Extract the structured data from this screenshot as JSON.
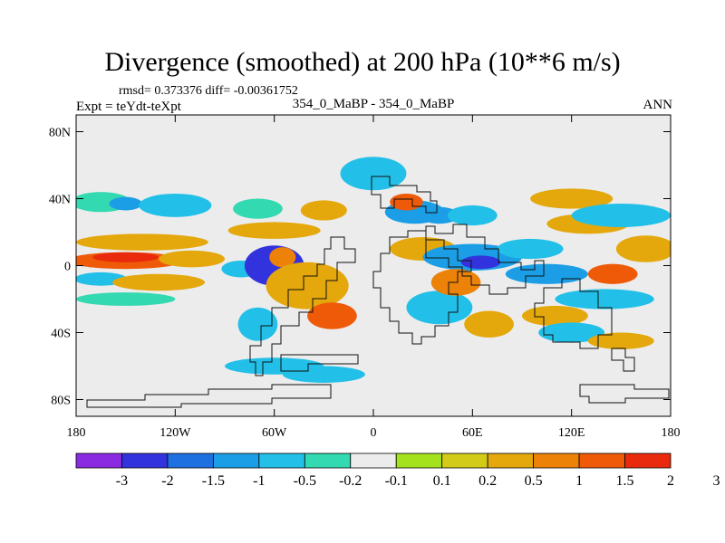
{
  "header": {
    "title": "Divergence (smoothed) at 200 hPa (10**6 m/s)",
    "stats": "rmsd= 0.373376 diff= -0.00361752",
    "experiment": "Expt = teYdt-teXpt",
    "case": "354_0_MaBP - 354_0_MaBP",
    "period": "ANN"
  },
  "chart_data": {
    "type": "heatmap",
    "title": "Divergence (smoothed) at 200 hPa (10**6 m/s)",
    "xlabel": "",
    "ylabel": "",
    "xlim": [
      -180,
      180
    ],
    "ylim": [
      -90,
      90
    ],
    "x_ticks": [
      {
        "value": -180,
        "label": "180"
      },
      {
        "value": -120,
        "label": "120W"
      },
      {
        "value": -60,
        "label": "60W"
      },
      {
        "value": 0,
        "label": "0"
      },
      {
        "value": 60,
        "label": "60E"
      },
      {
        "value": 120,
        "label": "120E"
      },
      {
        "value": 180,
        "label": "180"
      }
    ],
    "y_ticks": [
      {
        "value": 80,
        "label": "80N"
      },
      {
        "value": 40,
        "label": "40N"
      },
      {
        "value": 0,
        "label": "0"
      },
      {
        "value": -40,
        "label": "40S"
      },
      {
        "value": -80,
        "label": "80S"
      }
    ],
    "colorbar": {
      "colors": [
        "#8a2be2",
        "#3333dd",
        "#1e6fe0",
        "#1b9ee6",
        "#22c0e8",
        "#33d9b0",
        "#ececec",
        "#a5e21e",
        "#d2cc18",
        "#e4a80d",
        "#ec8208",
        "#ef5a08",
        "#ea2a0c"
      ],
      "labels": [
        "-3",
        "-2",
        "-1.5",
        "-1",
        "-0.5",
        "-0.2",
        "-0.1",
        "0.1",
        "0.2",
        "0.5",
        "1",
        "1.5",
        "2",
        "3"
      ]
    },
    "blobs": [
      {
        "lon": -165,
        "lat": 38,
        "rlon": 18,
        "rlat": 6,
        "level": 5
      },
      {
        "lon": -150,
        "lat": 37,
        "rlon": 10,
        "rlat": 4,
        "level": 3
      },
      {
        "lon": -120,
        "lat": 36,
        "rlon": 22,
        "rlat": 7,
        "level": 4
      },
      {
        "lon": -70,
        "lat": 34,
        "rlon": 15,
        "rlat": 6,
        "level": 5
      },
      {
        "lon": -30,
        "lat": 33,
        "rlon": 14,
        "rlat": 6,
        "level": 9
      },
      {
        "lon": -60,
        "lat": 21,
        "rlon": 28,
        "rlat": 5,
        "level": 9
      },
      {
        "lon": -140,
        "lat": 14,
        "rlon": 40,
        "rlat": 5,
        "level": 9
      },
      {
        "lon": -150,
        "lat": 3,
        "rlon": 35,
        "rlat": 5,
        "level": 11
      },
      {
        "lon": -150,
        "lat": 5,
        "rlon": 20,
        "rlat": 3,
        "level": 12
      },
      {
        "lon": -110,
        "lat": 4,
        "rlon": 20,
        "rlat": 5,
        "level": 9
      },
      {
        "lon": -165,
        "lat": -8,
        "rlon": 16,
        "rlat": 4,
        "level": 4
      },
      {
        "lon": -130,
        "lat": -10,
        "rlon": 28,
        "rlat": 5,
        "level": 9
      },
      {
        "lon": -150,
        "lat": -20,
        "rlon": 30,
        "rlat": 4,
        "level": 5
      },
      {
        "lon": -80,
        "lat": -2,
        "rlon": 12,
        "rlat": 5,
        "level": 4
      },
      {
        "lon": -60,
        "lat": 0,
        "rlon": 18,
        "rlat": 12,
        "level": 1
      },
      {
        "lon": -55,
        "lat": 5,
        "rlon": 8,
        "rlat": 6,
        "level": 10
      },
      {
        "lon": -40,
        "lat": -12,
        "rlon": 25,
        "rlat": 14,
        "level": 9
      },
      {
        "lon": -25,
        "lat": -30,
        "rlon": 15,
        "rlat": 8,
        "level": 11
      },
      {
        "lon": -70,
        "lat": -35,
        "rlon": 12,
        "rlat": 10,
        "level": 4
      },
      {
        "lon": -60,
        "lat": -60,
        "rlon": 30,
        "rlat": 5,
        "level": 4
      },
      {
        "lon": -30,
        "lat": -65,
        "rlon": 25,
        "rlat": 5,
        "level": 4
      },
      {
        "lon": 0,
        "lat": 55,
        "rlon": 20,
        "rlat": 10,
        "level": 4
      },
      {
        "lon": 25,
        "lat": 32,
        "rlon": 18,
        "rlat": 7,
        "level": 3
      },
      {
        "lon": 20,
        "lat": 38,
        "rlon": 10,
        "rlat": 5,
        "level": 11
      },
      {
        "lon": 40,
        "lat": 30,
        "rlon": 12,
        "rlat": 5,
        "level": 3
      },
      {
        "lon": 60,
        "lat": 30,
        "rlon": 15,
        "rlat": 6,
        "level": 4
      },
      {
        "lon": 30,
        "lat": 10,
        "rlon": 20,
        "rlat": 7,
        "level": 9
      },
      {
        "lon": 60,
        "lat": 5,
        "rlon": 30,
        "rlat": 8,
        "level": 3
      },
      {
        "lon": 65,
        "lat": 2,
        "rlon": 12,
        "rlat": 4,
        "level": 1
      },
      {
        "lon": 95,
        "lat": 10,
        "rlon": 20,
        "rlat": 6,
        "level": 4
      },
      {
        "lon": 105,
        "lat": -5,
        "rlon": 25,
        "rlat": 6,
        "level": 3
      },
      {
        "lon": 130,
        "lat": 25,
        "rlon": 25,
        "rlat": 6,
        "level": 9
      },
      {
        "lon": 120,
        "lat": 40,
        "rlon": 25,
        "rlat": 6,
        "level": 9
      },
      {
        "lon": 150,
        "lat": 30,
        "rlon": 30,
        "rlat": 7,
        "level": 4
      },
      {
        "lon": 165,
        "lat": 10,
        "rlon": 18,
        "rlat": 8,
        "level": 9
      },
      {
        "lon": 145,
        "lat": -5,
        "rlon": 15,
        "rlat": 6,
        "level": 11
      },
      {
        "lon": 140,
        "lat": -20,
        "rlon": 30,
        "rlat": 6,
        "level": 4
      },
      {
        "lon": 110,
        "lat": -30,
        "rlon": 20,
        "rlat": 6,
        "level": 9
      },
      {
        "lon": 70,
        "lat": -35,
        "rlon": 15,
        "rlat": 8,
        "level": 9
      },
      {
        "lon": 40,
        "lat": -25,
        "rlon": 20,
        "rlat": 10,
        "level": 4
      },
      {
        "lon": 120,
        "lat": -40,
        "rlon": 20,
        "rlat": 6,
        "level": 4
      },
      {
        "lon": 150,
        "lat": -45,
        "rlon": 20,
        "rlat": 5,
        "level": 9
      },
      {
        "lon": 50,
        "lat": -10,
        "rlon": 15,
        "rlat": 8,
        "level": 10
      }
    ]
  }
}
